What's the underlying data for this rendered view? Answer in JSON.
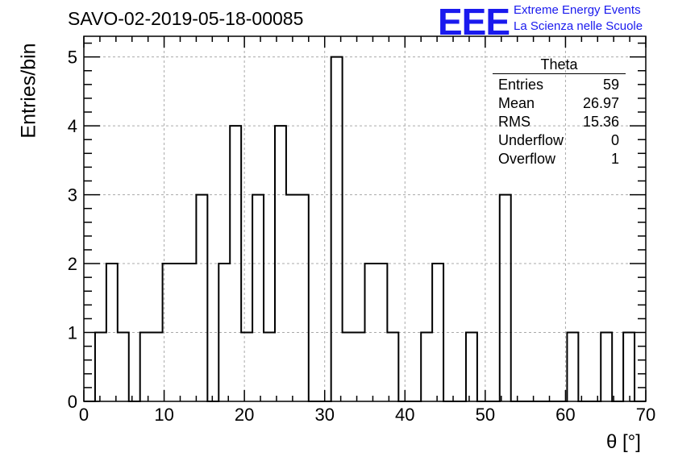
{
  "title": "SAVO-02-2019-05-18-00085",
  "logo": {
    "mark": "EEE",
    "line1": "Extreme Energy Events",
    "line2": "La Scienza nelle Scuole",
    "color": "#1a1aee"
  },
  "stats": {
    "title": "Theta",
    "rows": [
      {
        "label": "Entries",
        "value": "59"
      },
      {
        "label": "Mean",
        "value": "26.97"
      },
      {
        "label": "RMS",
        "value": "15.36"
      },
      {
        "label": "Underflow",
        "value": "0"
      },
      {
        "label": "Overflow",
        "value": "1"
      }
    ]
  },
  "chart_data": {
    "type": "bar",
    "histogram": true,
    "title": "SAVO-02-2019-05-18-00085",
    "xlabel": "θ [°]",
    "ylabel": "Entries/bin",
    "xlim": [
      0,
      70
    ],
    "ylim": [
      0,
      5.3
    ],
    "xticks": [
      0,
      10,
      20,
      30,
      40,
      50,
      60,
      70
    ],
    "yticks": [
      0,
      1,
      2,
      3,
      4,
      5
    ],
    "grid": true,
    "bin_width": 1.4,
    "bin_start": 0,
    "values": [
      0,
      1,
      2,
      1,
      0,
      1,
      1,
      2,
      2,
      2,
      3,
      0,
      2,
      4,
      1,
      3,
      1,
      4,
      3,
      3,
      0,
      0,
      5,
      1,
      1,
      2,
      2,
      1,
      0,
      0,
      1,
      2,
      0,
      0,
      1,
      0,
      0,
      3,
      0,
      0,
      0,
      0,
      0,
      1,
      0,
      0,
      1,
      0,
      1,
      0
    ]
  }
}
